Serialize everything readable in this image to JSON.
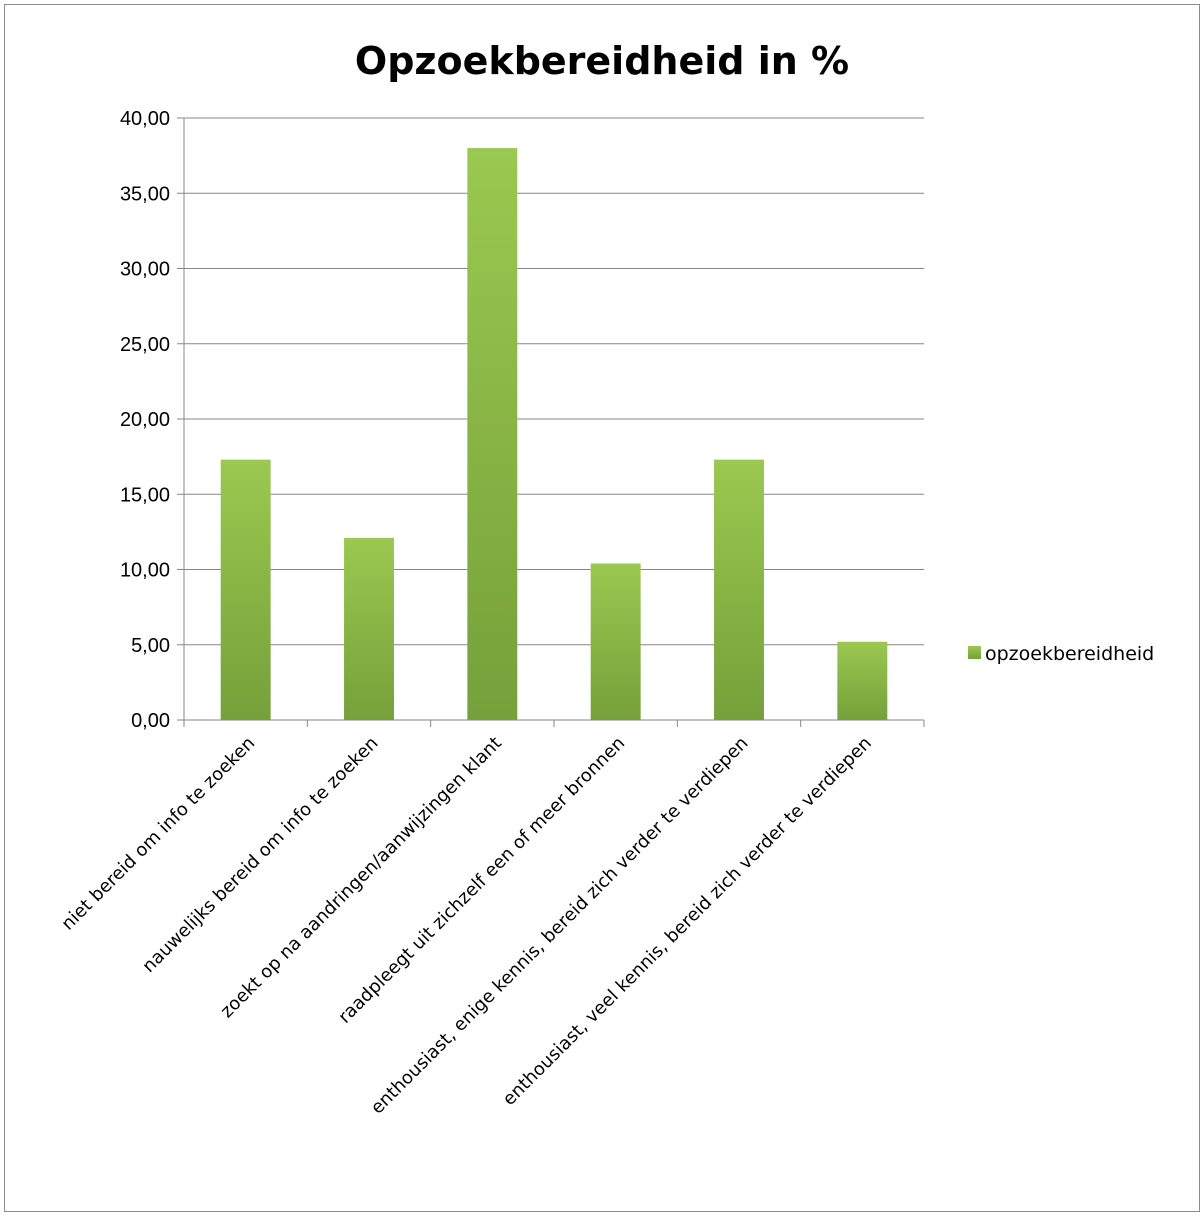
{
  "chart_data": {
    "type": "bar",
    "title": "Opzoekbereidheid in %",
    "xlabel": "",
    "ylabel": "",
    "ylim": [
      0,
      40
    ],
    "yticks": [
      "0,00",
      "5,00",
      "10,00",
      "15,00",
      "20,00",
      "25,00",
      "30,00",
      "35,00",
      "40,00"
    ],
    "grid": true,
    "legend_position": "right",
    "categories": [
      "niet bereid om info te zoeken",
      "nauwelijks bereid om info te zoeken",
      "zoekt op na aandringen/aanwijzingen klant",
      "raadpleegt uit zichzelf een of meer bronnen",
      "enthousiast, enige kennis, bereid zich verder te verdiepen",
      "enthousiast, veel kennis, bereid zich verder te verdiepen"
    ],
    "series": [
      {
        "name": "opzoekbereidheid",
        "values": [
          17.3,
          12.1,
          38.0,
          10.4,
          17.3,
          5.2
        ],
        "color_top": "#9bc850",
        "color_bottom": "#76a03a"
      }
    ]
  }
}
